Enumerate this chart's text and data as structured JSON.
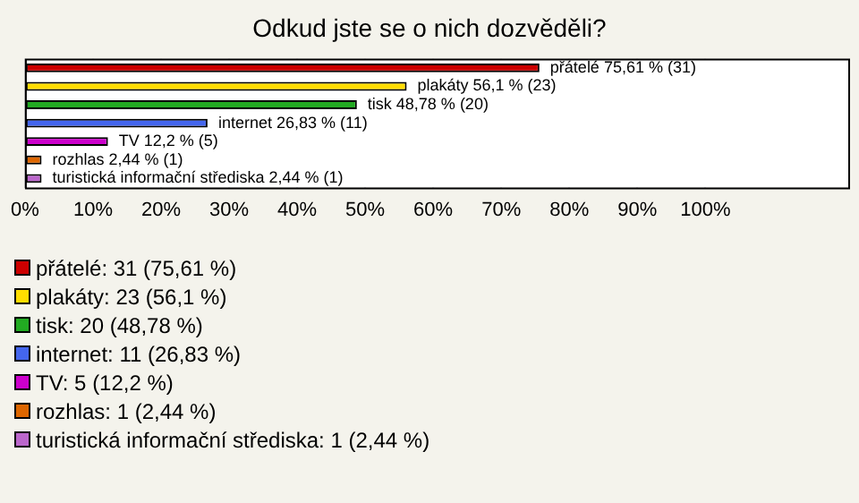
{
  "chart_data": {
    "type": "bar",
    "orientation": "horizontal",
    "title": "Odkud jste se o nich dozvěděli?",
    "categories": [
      "přátelé",
      "plakáty",
      "tisk",
      "internet",
      "TV",
      "rozhlas",
      "turistická informační střediska"
    ],
    "values": [
      75.61,
      56.1,
      48.78,
      26.83,
      12.2,
      2.44,
      2.44
    ],
    "colors": [
      "#cc0000",
      "#ffdd00",
      "#22aa22",
      "#4466ee",
      "#cc00cc",
      "#dd6600",
      "#bb66cc"
    ],
    "value_labels": [
      "75,61 % (31)",
      "56,1 % (23)",
      "48,78 % (20)",
      "26,83 % (11)",
      "12,2 % (5)",
      "2,44 % (1)",
      "2,44 % (1)"
    ],
    "xlim": [
      0,
      121
    ],
    "xticks": [
      {
        "value": 0,
        "label": "0%"
      },
      {
        "value": 10,
        "label": "10%"
      },
      {
        "value": 20,
        "label": "20%"
      },
      {
        "value": 30,
        "label": "30%"
      },
      {
        "value": 40,
        "label": "40%"
      },
      {
        "value": 50,
        "label": "50%"
      },
      {
        "value": 60,
        "label": "60%"
      },
      {
        "value": 70,
        "label": "70%"
      },
      {
        "value": 80,
        "label": "80%"
      },
      {
        "value": 90,
        "label": "90%"
      },
      {
        "value": 100,
        "label": "100%"
      }
    ],
    "grid": "x",
    "tick_labels": "x",
    "annotations": [
      "přátelé: 31 (75,61 %)",
      "plakáty: 23 (56,1 %)",
      "tisk: 20 (48,78 %)",
      "internet: 11 (26,83 %)",
      "TV: 5 (12,2 %)",
      "rozhlas: 1 (2,44 %)",
      "turistická informační střediska: 1 (2,44 %)"
    ]
  }
}
